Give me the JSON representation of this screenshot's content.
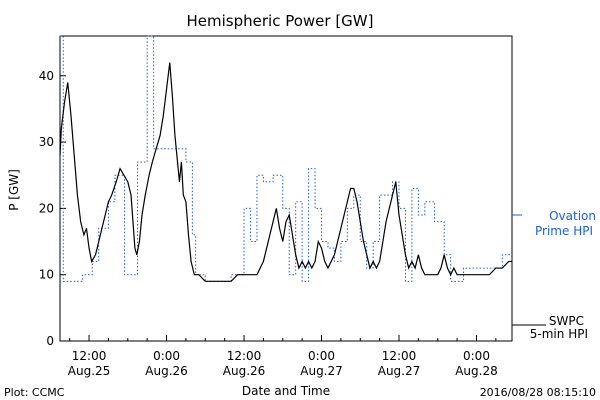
{
  "chart_data": {
    "type": "line",
    "title": "Hemispheric Power [GW]",
    "ylabel": "P [GW]",
    "xlabel": "Date and Time",
    "x_tick_labels": [
      {
        "time": "12:00",
        "date": "Aug.25"
      },
      {
        "time": "0:00",
        "date": "Aug.26"
      },
      {
        "time": "12:00",
        "date": "Aug.26"
      },
      {
        "time": "0:00",
        "date": "Aug.27"
      },
      {
        "time": "12:00",
        "date": "Aug.27"
      },
      {
        "time": "0:00",
        "date": "Aug.28"
      }
    ],
    "x_tick_hours": [
      -12,
      0,
      12,
      24,
      36,
      48
    ],
    "xlim_hours_from_aug26_0000": [
      -16.5,
      53.5
    ],
    "ylim": [
      0,
      46
    ],
    "y_ticks": [
      0,
      10,
      20,
      30,
      40
    ],
    "series": [
      {
        "name_lines": [
          "SWPC",
          "5-min HPI"
        ],
        "color": "#000000",
        "style": "solid",
        "points": [
          [
            -16.5,
            28
          ],
          [
            -16.3,
            32
          ],
          [
            -15.8,
            36
          ],
          [
            -15.3,
            39
          ],
          [
            -14.8,
            34
          ],
          [
            -14.3,
            28
          ],
          [
            -13.8,
            22
          ],
          [
            -13.3,
            18
          ],
          [
            -12.8,
            16
          ],
          [
            -12.4,
            17
          ],
          [
            -12.0,
            14
          ],
          [
            -11.6,
            12
          ],
          [
            -11.0,
            13
          ],
          [
            -10.5,
            15
          ],
          [
            -10.0,
            17
          ],
          [
            -9.5,
            19
          ],
          [
            -9.0,
            21
          ],
          [
            -8.5,
            22
          ],
          [
            -7.8,
            24
          ],
          [
            -7.2,
            26
          ],
          [
            -6.6,
            25
          ],
          [
            -6.0,
            24
          ],
          [
            -5.5,
            22
          ],
          [
            -5.2,
            18
          ],
          [
            -4.9,
            14
          ],
          [
            -4.6,
            13
          ],
          [
            -4.2,
            15
          ],
          [
            -3.8,
            19
          ],
          [
            -3.3,
            22
          ],
          [
            -2.7,
            25
          ],
          [
            -2.2,
            27
          ],
          [
            -1.6,
            29
          ],
          [
            -1.0,
            31
          ],
          [
            -0.5,
            34
          ],
          [
            0.0,
            38
          ],
          [
            0.5,
            42
          ],
          [
            0.9,
            37
          ],
          [
            1.3,
            31
          ],
          [
            1.7,
            27
          ],
          [
            2.0,
            24
          ],
          [
            2.3,
            27
          ],
          [
            2.6,
            22
          ],
          [
            3.0,
            21
          ],
          [
            3.4,
            16
          ],
          [
            3.8,
            12
          ],
          [
            4.3,
            10
          ],
          [
            5.0,
            10
          ],
          [
            6.0,
            9
          ],
          [
            8.0,
            9
          ],
          [
            10.0,
            9
          ],
          [
            11.0,
            10
          ],
          [
            13.0,
            10
          ],
          [
            14.0,
            10
          ],
          [
            14.5,
            11
          ],
          [
            15.0,
            12
          ],
          [
            15.5,
            14
          ],
          [
            16.0,
            16
          ],
          [
            16.5,
            18
          ],
          [
            17.0,
            20
          ],
          [
            17.5,
            17
          ],
          [
            18.0,
            15
          ],
          [
            18.5,
            18
          ],
          [
            19.0,
            19
          ],
          [
            19.5,
            16
          ],
          [
            20.0,
            13
          ],
          [
            20.5,
            11
          ],
          [
            21.0,
            12
          ],
          [
            21.5,
            11
          ],
          [
            22.0,
            12
          ],
          [
            22.5,
            11
          ],
          [
            23.0,
            12
          ],
          [
            23.5,
            15
          ],
          [
            24.0,
            14
          ],
          [
            24.5,
            12
          ],
          [
            25.0,
            11
          ],
          [
            25.5,
            12
          ],
          [
            26.0,
            13
          ],
          [
            26.5,
            15
          ],
          [
            27.0,
            17
          ],
          [
            27.5,
            19
          ],
          [
            28.0,
            21
          ],
          [
            28.5,
            23
          ],
          [
            29.0,
            23
          ],
          [
            29.5,
            21
          ],
          [
            30.0,
            18
          ],
          [
            30.5,
            15
          ],
          [
            31.0,
            13
          ],
          [
            31.5,
            11
          ],
          [
            32.0,
            12
          ],
          [
            32.5,
            11
          ],
          [
            33.0,
            12
          ],
          [
            33.5,
            15
          ],
          [
            34.0,
            18
          ],
          [
            34.5,
            20
          ],
          [
            35.0,
            22
          ],
          [
            35.5,
            24
          ],
          [
            36.0,
            19
          ],
          [
            36.5,
            16
          ],
          [
            37.0,
            13
          ],
          [
            37.5,
            11
          ],
          [
            38.0,
            12
          ],
          [
            38.5,
            11
          ],
          [
            39.0,
            13
          ],
          [
            39.5,
            11
          ],
          [
            40.0,
            10
          ],
          [
            41.0,
            10
          ],
          [
            42.0,
            10
          ],
          [
            42.5,
            11
          ],
          [
            43.0,
            13
          ],
          [
            43.5,
            11
          ],
          [
            44.0,
            10
          ],
          [
            44.5,
            11
          ],
          [
            45.0,
            10
          ],
          [
            46.0,
            10
          ],
          [
            48.0,
            10
          ],
          [
            50.0,
            10
          ],
          [
            51.0,
            11
          ],
          [
            52.0,
            11
          ],
          [
            53.0,
            12
          ],
          [
            53.5,
            12
          ]
        ]
      },
      {
        "name_lines": [
          "Ovation",
          "Prime HPI"
        ],
        "color": "#1f5fd6",
        "style": "dotted-step",
        "points": [
          [
            -16.5,
            47
          ],
          [
            -16.0,
            9
          ],
          [
            -14.0,
            9
          ],
          [
            -13.0,
            10
          ],
          [
            -11.5,
            12
          ],
          [
            -10.5,
            17
          ],
          [
            -9.0,
            21
          ],
          [
            -8.0,
            25
          ],
          [
            -6.5,
            10
          ],
          [
            -4.5,
            27
          ],
          [
            -3.0,
            47
          ],
          [
            -2.0,
            29
          ],
          [
            1.0,
            29
          ],
          [
            2.0,
            29
          ],
          [
            3.0,
            27
          ],
          [
            4.0,
            16
          ],
          [
            4.5,
            10
          ],
          [
            6.0,
            9
          ],
          [
            8.5,
            9
          ],
          [
            10.0,
            10
          ],
          [
            12.0,
            20
          ],
          [
            13.0,
            15
          ],
          [
            14.0,
            25
          ],
          [
            15.0,
            24
          ],
          [
            16.5,
            25
          ],
          [
            18.0,
            20
          ],
          [
            19.0,
            10
          ],
          [
            20.0,
            21
          ],
          [
            21.0,
            9
          ],
          [
            22.0,
            26
          ],
          [
            23.0,
            20
          ],
          [
            24.0,
            15
          ],
          [
            25.0,
            14
          ],
          [
            26.0,
            12
          ],
          [
            27.0,
            15
          ],
          [
            28.0,
            20
          ],
          [
            29.0,
            22
          ],
          [
            30.0,
            15
          ],
          [
            31.0,
            11
          ],
          [
            32.0,
            15
          ],
          [
            33.0,
            22
          ],
          [
            34.0,
            22
          ],
          [
            35.0,
            24
          ],
          [
            36.0,
            20
          ],
          [
            37.0,
            9
          ],
          [
            38.0,
            23
          ],
          [
            39.0,
            19
          ],
          [
            40.0,
            21
          ],
          [
            41.5,
            18
          ],
          [
            43.0,
            13
          ],
          [
            44.0,
            9
          ],
          [
            46.0,
            11
          ],
          [
            48.0,
            11
          ],
          [
            50.0,
            11
          ],
          [
            52.0,
            13
          ],
          [
            53.5,
            13
          ]
        ]
      }
    ],
    "plot_credit": "Plot: CCMC",
    "timestamp": "2016/08/28 08:15:10"
  }
}
